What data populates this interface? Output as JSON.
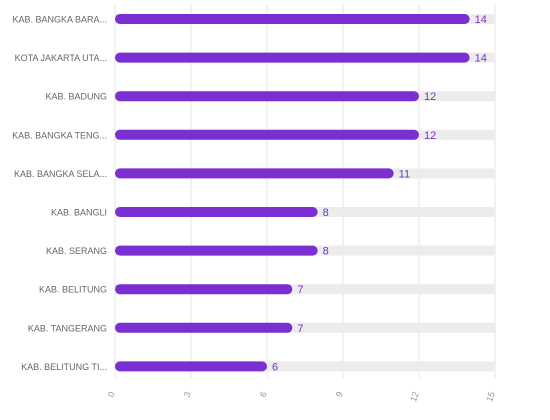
{
  "chart_data": {
    "type": "bar",
    "orientation": "horizontal",
    "categories": [
      "KAB. BANGKA BARA...",
      "KOTA JAKARTA UTA...",
      "KAB. BADUNG",
      "KAB. BANGKA TENG...",
      "KAB. BANGKA SELA...",
      "KAB. BANGLI",
      "KAB. SERANG",
      "KAB. BELITUNG",
      "KAB. TANGERANG",
      "KAB. BELITUNG TI..."
    ],
    "values": [
      14,
      14,
      12,
      12,
      11,
      8,
      8,
      7,
      7,
      6
    ],
    "value_labels": [
      "14",
      "14",
      "12",
      "12",
      "11",
      "8",
      "8",
      "7",
      "7",
      "6"
    ],
    "xlim": [
      0,
      15
    ],
    "x_ticks": [
      "0",
      "3",
      "6",
      "9",
      "12",
      "15"
    ],
    "title": "",
    "xlabel": "",
    "ylabel": "",
    "grid": true,
    "colors": {
      "bar": "#7b2fd0",
      "track": "#ececec",
      "grid": "#e4e4e4",
      "value_label": "#7b2fd0",
      "category_label": "#666666",
      "tick_label": "#999999"
    }
  }
}
